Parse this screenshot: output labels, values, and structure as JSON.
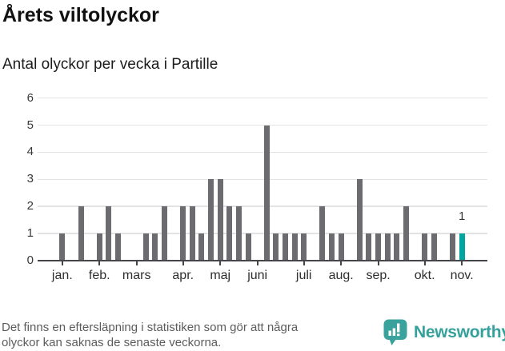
{
  "header": {
    "title": "Årets viltolyckor",
    "subtitle": "Antal olyckor per vecka i Partille"
  },
  "chart_data": {
    "type": "bar",
    "title": "Årets viltolyckor",
    "subtitle": "Antal olyckor per vecka i Partille",
    "ylabel": "",
    "xlabel": "",
    "ylim": [
      0,
      6
    ],
    "y_ticks": [
      0,
      1,
      2,
      3,
      4,
      5,
      6
    ],
    "grid": true,
    "weekly_values": [
      1,
      0,
      2,
      0,
      1,
      2,
      1,
      0,
      0,
      1,
      1,
      2,
      0,
      2,
      2,
      1,
      3,
      3,
      2,
      2,
      1,
      0,
      5,
      1,
      1,
      1,
      1,
      0,
      2,
      1,
      1,
      0,
      3,
      1,
      1,
      1,
      1,
      2,
      0,
      1,
      1,
      0,
      1,
      1
    ],
    "month_ticks": [
      {
        "label": "jan.",
        "slot": 0
      },
      {
        "label": "feb.",
        "slot": 4
      },
      {
        "label": "mars",
        "slot": 8
      },
      {
        "label": "apr.",
        "slot": 13
      },
      {
        "label": "maj",
        "slot": 17
      },
      {
        "label": "juni",
        "slot": 21
      },
      {
        "label": "juli",
        "slot": 26
      },
      {
        "label": "aug.",
        "slot": 30
      },
      {
        "label": "sep.",
        "slot": 34
      },
      {
        "label": "okt.",
        "slot": 39
      },
      {
        "label": "nov.",
        "slot": 43
      }
    ],
    "highlight_index": 43,
    "highlight_annotation": "1",
    "bar_color": "#6b6b70",
    "highlight_color": "#00a5a0",
    "gridline_color": "#e3e3e3",
    "axis_color": "#45454a"
  },
  "footer": {
    "note_line1": "Det finns en eftersläpning i statistiken som gör att några",
    "note_line2": "olyckor kan saknas de senaste veckorna.",
    "brand": "Newsworthy",
    "brand_color": "#35a19c"
  }
}
